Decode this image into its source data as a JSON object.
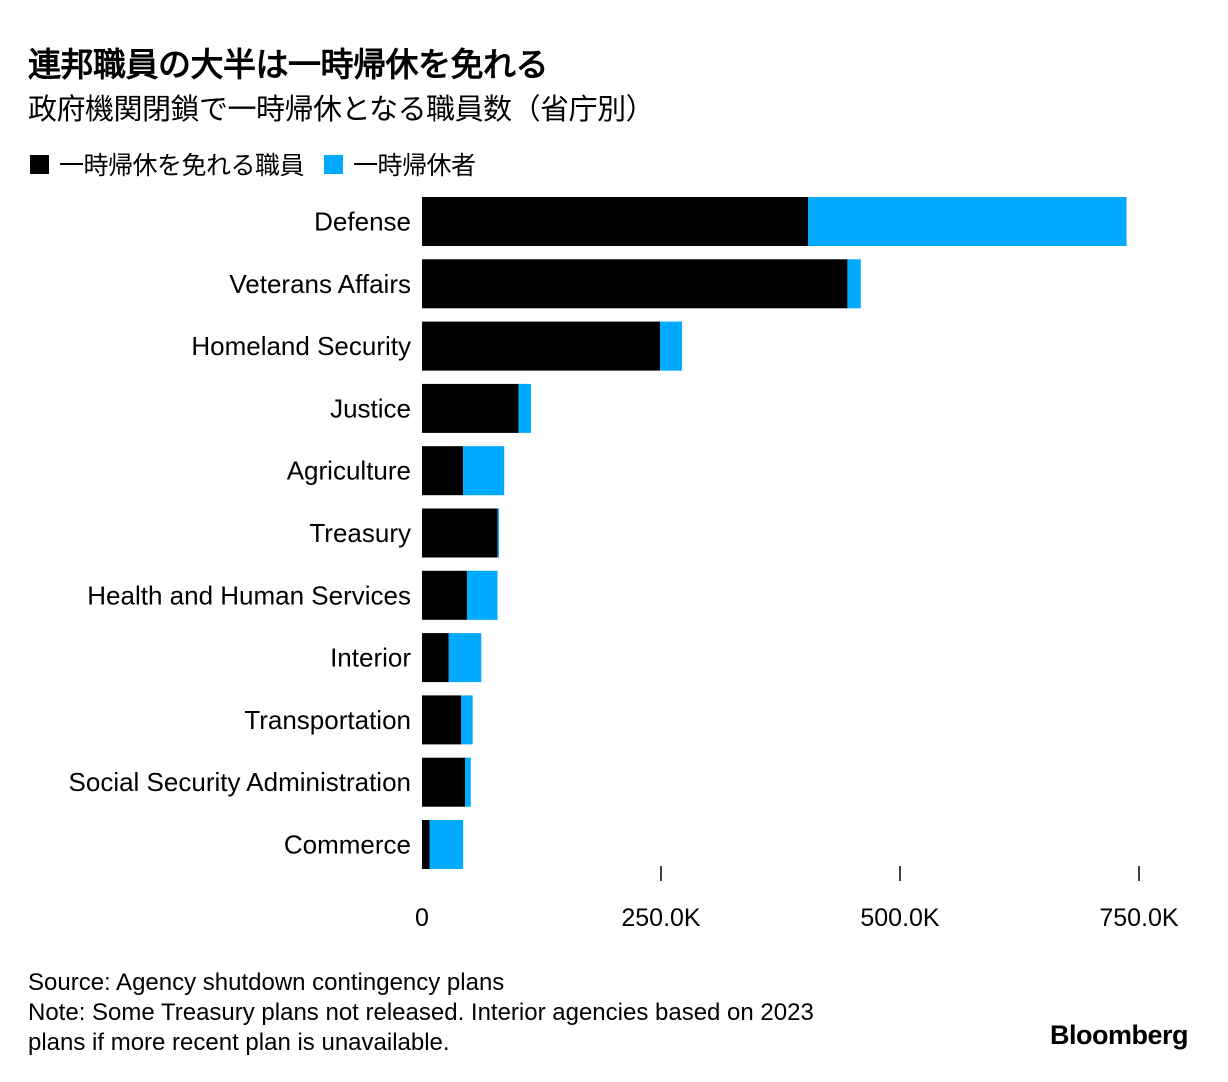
{
  "header": {
    "title": "連邦職員の大半は一時帰休を免れる",
    "subtitle": "政府機関閉鎖で一時帰休となる職員数（省庁別）"
  },
  "legend": [
    {
      "label": "一時帰休を免れる職員",
      "color": "#000000"
    },
    {
      "label": "一時帰休者",
      "color": "#00aaff"
    }
  ],
  "chart_data": {
    "type": "bar",
    "orientation": "horizontal",
    "stacked": true,
    "title": "連邦職員の大半は一時帰休を免れる",
    "subtitle": "政府機関閉鎖で一時帰休となる職員数（省庁別）",
    "xlabel": "",
    "ylabel": "",
    "xlim": [
      0,
      780000
    ],
    "grid": false,
    "legend_position": "top-left",
    "categories": [
      "Defense",
      "Veterans Affairs",
      "Homeland Security",
      "Justice",
      "Agriculture",
      "Treasury",
      "Health and Human Services",
      "Interior",
      "Transportation",
      "Social Security Administration",
      "Commerce"
    ],
    "series": [
      {
        "name": "一時帰休を免れる職員",
        "color": "#000000",
        "values": [
          404000,
          445000,
          249000,
          101000,
          43000,
          79000,
          47000,
          28000,
          41000,
          45000,
          8000
        ]
      },
      {
        "name": "一時帰休者",
        "color": "#00aaff",
        "values": [
          333000,
          14000,
          23000,
          13000,
          43000,
          1500,
          32000,
          34000,
          12000,
          6000,
          35000
        ]
      }
    ],
    "ticks": [
      {
        "value": 0,
        "label": "0"
      },
      {
        "value": 250000,
        "label": "250.0K"
      },
      {
        "value": 500000,
        "label": "500.0K"
      },
      {
        "value": 750000,
        "label": "750.0K"
      }
    ]
  },
  "footer": {
    "source": "Source: Agency shutdown contingency plans",
    "note_line1": "Note: Some Treasury plans not released. Interior agencies based on 2023",
    "note_line2": "plans if more recent plan is unavailable.",
    "logo": "Bloomberg"
  }
}
